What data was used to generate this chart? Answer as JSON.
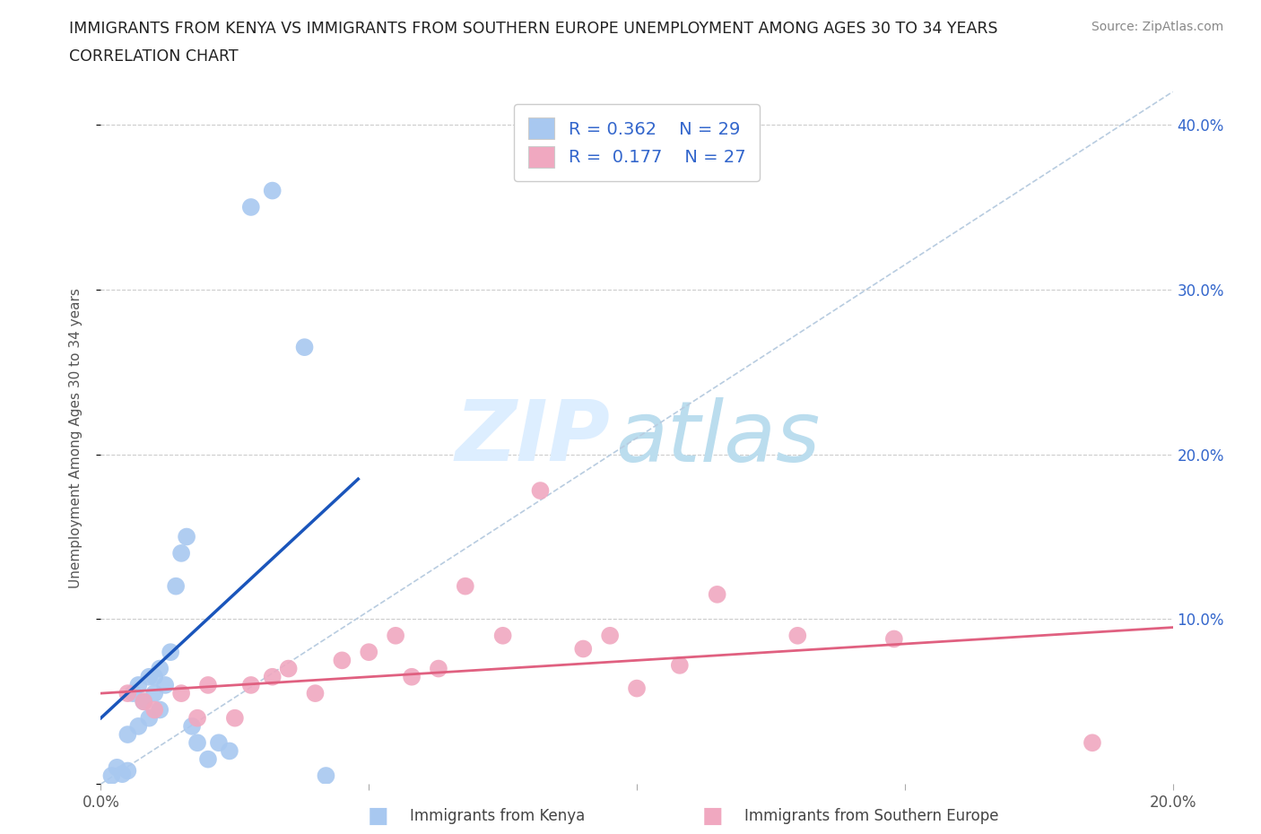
{
  "title_line1": "IMMIGRANTS FROM KENYA VS IMMIGRANTS FROM SOUTHERN EUROPE UNEMPLOYMENT AMONG AGES 30 TO 34 YEARS",
  "title_line2": "CORRELATION CHART",
  "source": "Source: ZipAtlas.com",
  "ylabel": "Unemployment Among Ages 30 to 34 years",
  "xlim": [
    0.0,
    0.2
  ],
  "ylim": [
    0.0,
    0.42
  ],
  "xticks": [
    0.0,
    0.05,
    0.1,
    0.15,
    0.2
  ],
  "xtick_labels": [
    "0.0%",
    "",
    "",
    "",
    "20.0%"
  ],
  "ytick_vals": [
    0.0,
    0.1,
    0.2,
    0.3,
    0.4
  ],
  "ytick_labels_right": [
    "",
    "10.0%",
    "20.0%",
    "30.0%",
    "40.0%"
  ],
  "r_kenya": 0.362,
  "n_kenya": 29,
  "r_southern": 0.177,
  "n_southern": 27,
  "kenya_color": "#a8c8f0",
  "southern_color": "#f0a8c0",
  "kenya_line_color": "#1a55bb",
  "southern_line_color": "#e06080",
  "diagonal_color": "#b8cce0",
  "kenya_scatter_x": [
    0.002,
    0.003,
    0.004,
    0.005,
    0.005,
    0.006,
    0.007,
    0.007,
    0.008,
    0.009,
    0.009,
    0.01,
    0.01,
    0.011,
    0.011,
    0.012,
    0.013,
    0.014,
    0.015,
    0.016,
    0.017,
    0.018,
    0.02,
    0.022,
    0.024,
    0.028,
    0.032,
    0.038,
    0.042
  ],
  "kenya_scatter_y": [
    0.005,
    0.01,
    0.006,
    0.008,
    0.03,
    0.055,
    0.035,
    0.06,
    0.05,
    0.04,
    0.065,
    0.055,
    0.065,
    0.045,
    0.07,
    0.06,
    0.08,
    0.12,
    0.14,
    0.15,
    0.035,
    0.025,
    0.015,
    0.025,
    0.02,
    0.35,
    0.36,
    0.265,
    0.005
  ],
  "southern_scatter_x": [
    0.005,
    0.008,
    0.01,
    0.015,
    0.018,
    0.02,
    0.025,
    0.028,
    0.032,
    0.035,
    0.04,
    0.045,
    0.05,
    0.055,
    0.058,
    0.063,
    0.068,
    0.075,
    0.082,
    0.09,
    0.095,
    0.1,
    0.108,
    0.115,
    0.13,
    0.148,
    0.185
  ],
  "southern_scatter_y": [
    0.055,
    0.05,
    0.045,
    0.055,
    0.04,
    0.06,
    0.04,
    0.06,
    0.065,
    0.07,
    0.055,
    0.075,
    0.08,
    0.09,
    0.065,
    0.07,
    0.12,
    0.09,
    0.178,
    0.082,
    0.09,
    0.058,
    0.072,
    0.115,
    0.09,
    0.088,
    0.025
  ],
  "kenya_line_x": [
    0.0,
    0.048
  ],
  "kenya_line_y": [
    0.04,
    0.185
  ],
  "southern_line_x": [
    0.0,
    0.2
  ],
  "southern_line_y": [
    0.055,
    0.095
  ],
  "diag_line_x": [
    0.0,
    0.2
  ],
  "diag_line_y": [
    0.0,
    0.42
  ]
}
